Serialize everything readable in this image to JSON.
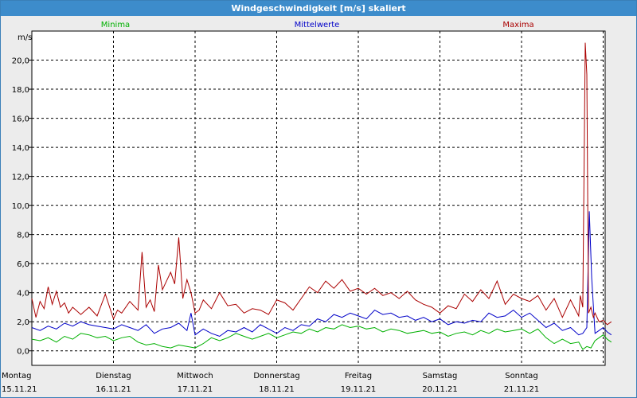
{
  "window": {
    "title": "Windgeschwindigkeit [m/s] skaliert"
  },
  "colors": {
    "min": "#00b000",
    "mean": "#0000c8",
    "max": "#aa0000",
    "grid": "#000000"
  },
  "chart_data": {
    "type": "line",
    "title": "Windgeschwindigkeit [m/s] skaliert",
    "ylabel": "m/s",
    "ylim": [
      -1.0,
      22.0
    ],
    "grid": true,
    "legend_placement": "top",
    "y_ticks": [
      "0,0",
      "2,0",
      "4,0",
      "6,0",
      "8,0",
      "10,0",
      "12,0",
      "14,0",
      "16,0",
      "18,0",
      "20,0"
    ],
    "x_ticks": [
      {
        "day": "Montag",
        "date": "15.11.21"
      },
      {
        "day": "Dienstag",
        "date": "16.11.21"
      },
      {
        "day": "Mittwoch",
        "date": "17.11.21"
      },
      {
        "day": "Donnerstag",
        "date": "18.11.21"
      },
      {
        "day": "Freitag",
        "date": "19.11.21"
      },
      {
        "day": "Samstag",
        "date": "20.11.21"
      },
      {
        "day": "Sonntag",
        "date": "21.11.21"
      }
    ],
    "x_range_days": [
      0,
      7.1
    ],
    "series": [
      {
        "name": "Minima",
        "color": "#00b000",
        "x": [
          0,
          0.1,
          0.2,
          0.3,
          0.4,
          0.5,
          0.6,
          0.7,
          0.8,
          0.9,
          1.0,
          1.1,
          1.2,
          1.3,
          1.4,
          1.5,
          1.6,
          1.7,
          1.8,
          1.9,
          2.0,
          2.1,
          2.2,
          2.3,
          2.4,
          2.5,
          2.6,
          2.7,
          2.8,
          2.9,
          3.0,
          3.1,
          3.2,
          3.3,
          3.4,
          3.5,
          3.6,
          3.7,
          3.8,
          3.9,
          4.0,
          4.1,
          4.2,
          4.3,
          4.4,
          4.5,
          4.6,
          4.7,
          4.8,
          4.9,
          5.0,
          5.1,
          5.2,
          5.3,
          5.4,
          5.5,
          5.6,
          5.7,
          5.8,
          5.9,
          6.0,
          6.1,
          6.2,
          6.3,
          6.4,
          6.5,
          6.6,
          6.7,
          6.75,
          6.8,
          6.85,
          6.9,
          6.95,
          7.0,
          7.05,
          7.1
        ],
        "y": [
          0.8,
          0.7,
          0.9,
          0.6,
          1.0,
          0.8,
          1.2,
          1.1,
          0.9,
          1.0,
          0.7,
          0.9,
          1.0,
          0.6,
          0.4,
          0.5,
          0.3,
          0.2,
          0.4,
          0.3,
          0.2,
          0.5,
          0.9,
          0.7,
          0.9,
          1.2,
          1.0,
          0.8,
          1.0,
          1.2,
          0.9,
          1.1,
          1.3,
          1.2,
          1.5,
          1.3,
          1.6,
          1.5,
          1.8,
          1.6,
          1.7,
          1.5,
          1.6,
          1.3,
          1.5,
          1.4,
          1.2,
          1.3,
          1.4,
          1.2,
          1.3,
          1.0,
          1.2,
          1.3,
          1.1,
          1.4,
          1.2,
          1.5,
          1.3,
          1.4,
          1.5,
          1.2,
          1.5,
          0.9,
          0.5,
          0.8,
          0.5,
          0.6,
          0.1,
          0.3,
          0.2,
          0.7,
          0.9,
          1.1,
          0.8,
          0.6
        ]
      },
      {
        "name": "Mittelwerte",
        "color": "#0000c8",
        "x": [
          0,
          0.1,
          0.2,
          0.3,
          0.4,
          0.5,
          0.6,
          0.7,
          0.8,
          0.9,
          1.0,
          1.1,
          1.2,
          1.3,
          1.4,
          1.5,
          1.6,
          1.7,
          1.8,
          1.9,
          1.95,
          2.0,
          2.1,
          2.2,
          2.3,
          2.4,
          2.5,
          2.6,
          2.7,
          2.8,
          2.9,
          3.0,
          3.1,
          3.2,
          3.3,
          3.4,
          3.5,
          3.6,
          3.7,
          3.8,
          3.9,
          4.0,
          4.1,
          4.2,
          4.3,
          4.4,
          4.5,
          4.6,
          4.7,
          4.8,
          4.9,
          5.0,
          5.1,
          5.2,
          5.3,
          5.4,
          5.5,
          5.6,
          5.7,
          5.8,
          5.9,
          6.0,
          6.1,
          6.2,
          6.3,
          6.4,
          6.5,
          6.6,
          6.7,
          6.75,
          6.8,
          6.83,
          6.86,
          6.9,
          6.95,
          7.0,
          7.05,
          7.1
        ],
        "y": [
          1.6,
          1.4,
          1.7,
          1.5,
          1.9,
          1.7,
          2.0,
          1.8,
          1.7,
          1.6,
          1.5,
          1.8,
          1.6,
          1.4,
          1.8,
          1.2,
          1.5,
          1.6,
          1.9,
          1.4,
          2.6,
          1.1,
          1.5,
          1.2,
          1.0,
          1.4,
          1.3,
          1.6,
          1.3,
          1.8,
          1.5,
          1.2,
          1.6,
          1.4,
          1.8,
          1.7,
          2.2,
          2.0,
          2.5,
          2.3,
          2.6,
          2.4,
          2.2,
          2.8,
          2.5,
          2.6,
          2.3,
          2.4,
          2.1,
          2.3,
          2.0,
          2.2,
          1.8,
          2.0,
          1.9,
          2.1,
          2.0,
          2.6,
          2.3,
          2.4,
          2.8,
          2.3,
          2.6,
          2.1,
          1.6,
          1.9,
          1.4,
          1.6,
          1.1,
          1.2,
          1.6,
          9.6,
          5.0,
          1.2,
          1.4,
          1.6,
          1.3,
          1.1
        ]
      },
      {
        "name": "Maxima",
        "color": "#aa0000",
        "x": [
          0,
          0.05,
          0.1,
          0.15,
          0.2,
          0.25,
          0.3,
          0.35,
          0.4,
          0.45,
          0.5,
          0.6,
          0.7,
          0.8,
          0.9,
          1.0,
          1.05,
          1.1,
          1.2,
          1.3,
          1.35,
          1.4,
          1.45,
          1.5,
          1.55,
          1.6,
          1.65,
          1.7,
          1.75,
          1.8,
          1.85,
          1.9,
          1.95,
          2.0,
          2.05,
          2.1,
          2.2,
          2.3,
          2.4,
          2.5,
          2.6,
          2.7,
          2.8,
          2.9,
          3.0,
          3.1,
          3.2,
          3.3,
          3.4,
          3.5,
          3.6,
          3.7,
          3.8,
          3.9,
          4.0,
          4.1,
          4.2,
          4.3,
          4.4,
          4.5,
          4.6,
          4.7,
          4.8,
          4.9,
          5.0,
          5.1,
          5.2,
          5.3,
          5.4,
          5.5,
          5.6,
          5.7,
          5.8,
          5.9,
          6.0,
          6.1,
          6.2,
          6.3,
          6.4,
          6.5,
          6.6,
          6.7,
          6.72,
          6.75,
          6.78,
          6.8,
          6.82,
          6.85,
          6.88,
          6.9,
          6.95,
          7.0,
          7.05,
          7.1
        ],
        "y": [
          3.6,
          2.3,
          3.4,
          2.9,
          4.4,
          3.2,
          4.1,
          3.0,
          3.3,
          2.6,
          3.0,
          2.5,
          3.0,
          2.4,
          3.9,
          2.2,
          2.8,
          2.6,
          3.4,
          2.8,
          6.8,
          3.0,
          3.5,
          2.7,
          5.9,
          4.2,
          4.8,
          5.4,
          4.6,
          7.8,
          3.6,
          4.9,
          4.0,
          2.6,
          2.8,
          3.5,
          2.9,
          4.0,
          3.1,
          3.2,
          2.6,
          2.9,
          2.8,
          2.5,
          3.5,
          3.3,
          2.8,
          3.6,
          4.4,
          4.0,
          4.8,
          4.3,
          4.9,
          4.1,
          4.3,
          3.9,
          4.3,
          3.8,
          4.0,
          3.6,
          4.1,
          3.5,
          3.2,
          3.0,
          2.6,
          3.1,
          2.9,
          3.9,
          3.4,
          4.2,
          3.6,
          4.8,
          3.2,
          3.9,
          3.6,
          3.4,
          3.8,
          2.8,
          3.6,
          2.3,
          3.5,
          2.4,
          3.8,
          3.0,
          21.2,
          19.0,
          2.6,
          3.0,
          2.3,
          2.6,
          2.0,
          2.1,
          1.8,
          2.0
        ]
      }
    ]
  }
}
